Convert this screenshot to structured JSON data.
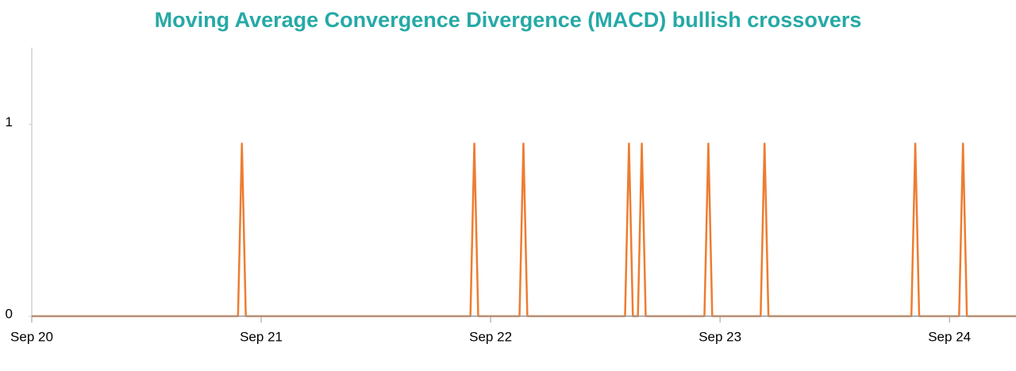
{
  "chart_data": {
    "type": "line",
    "title": "Moving Average Convergence Divergence (MACD) bullish crossovers",
    "x": [
      0,
      0.899,
      0.916,
      0.933,
      1.912,
      1.929,
      1.946,
      2.126,
      2.143,
      2.16,
      2.586,
      2.603,
      2.62,
      2.642,
      2.659,
      2.676,
      2.932,
      2.949,
      2.966,
      3.177,
      3.194,
      3.211,
      3.834,
      3.851,
      3.868,
      4.042,
      4.059,
      4.076,
      4.29
    ],
    "series": [
      {
        "color": "#ed7d31",
        "values": [
          0,
          0,
          0.9,
          0,
          0,
          0.9,
          0,
          0,
          0.9,
          0,
          0,
          0.9,
          0,
          0,
          0.9,
          0,
          0,
          0.9,
          0,
          0,
          0.9,
          0,
          0,
          0.9,
          0,
          0,
          0.9,
          0,
          0
        ]
      }
    ],
    "xlim": [
      0,
      4.29
    ],
    "xticks": [
      {
        "value": 0,
        "label": "Sep 20"
      },
      {
        "value": 1,
        "label": "Sep 21"
      },
      {
        "value": 2,
        "label": "Sep 22"
      },
      {
        "value": 3,
        "label": "Sep 23"
      },
      {
        "value": 4,
        "label": "Sep 24"
      }
    ],
    "ylim": [
      0,
      1.4
    ],
    "yticks": [
      0,
      1
    ],
    "grid": false
  }
}
